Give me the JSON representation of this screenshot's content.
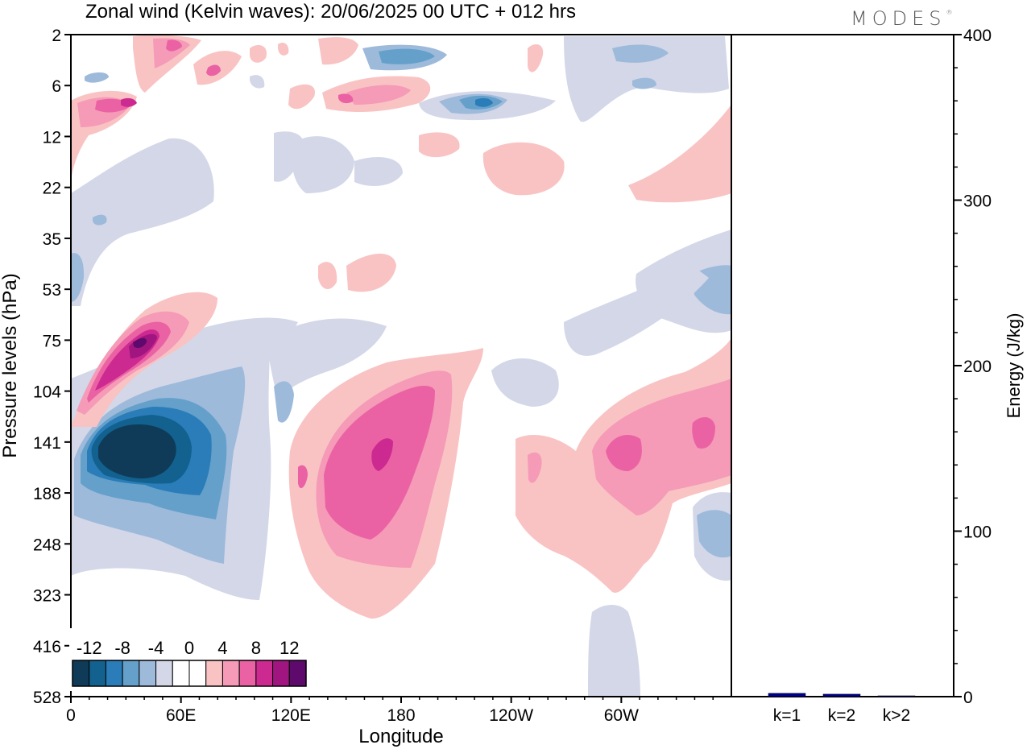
{
  "brand": {
    "name": "MODES",
    "mark": "®"
  },
  "chart_data": [
    {
      "type": "heatmap",
      "title": "Zonal wind (Kelvin waves):  20/06/2025  00 UTC  + 012 hrs",
      "xlabel": "Longitude",
      "ylabel": "Pressure levels (hPa)",
      "x_range_deg": [
        0,
        360
      ],
      "x_ticks": [
        {
          "lon": 0,
          "label": "0"
        },
        {
          "lon": 60,
          "label": "60E"
        },
        {
          "lon": 120,
          "label": "120E"
        },
        {
          "lon": 180,
          "label": "180"
        },
        {
          "lon": 240,
          "label": "120W"
        },
        {
          "lon": 300,
          "label": "60W"
        }
      ],
      "y_levels_hpa": [
        2,
        6,
        12,
        22,
        35,
        53,
        75,
        104,
        141,
        188,
        248,
        323,
        416,
        528
      ],
      "y_scale": "log-like (pressure levels, top = 2 hPa, bottom = 528 hPa)",
      "colorbar": {
        "labels": [
          "-12",
          "-8",
          "-4",
          "0",
          "4",
          "8",
          "12"
        ],
        "bins": [
          {
            "range": "< -12",
            "color": "#0f3b58"
          },
          {
            "range": "-12 to -10",
            "color": "#12618f"
          },
          {
            "range": "-10 to -8",
            "color": "#2a7db8"
          },
          {
            "range": "-8 to -6",
            "color": "#65a0cb"
          },
          {
            "range": "-6 to -4",
            "color": "#9dbadb"
          },
          {
            "range": "-4 to -2",
            "color": "#d3d7e8"
          },
          {
            "range": "-2 to 0",
            "color": "#ffffff"
          },
          {
            "range": "0 to 2",
            "color": "#ffffff"
          },
          {
            "range": "2 to 4",
            "color": "#f9c3c3"
          },
          {
            "range": "4 to 6",
            "color": "#f59ab7"
          },
          {
            "range": "6 to 8",
            "color": "#ea62a3"
          },
          {
            "range": "8 to 10",
            "color": "#cc2a91"
          },
          {
            "range": "10 to 12",
            "color": "#a0157f"
          },
          {
            "range": "> 12",
            "color": "#5e0a6c"
          }
        ]
      },
      "features": [
        {
          "name": "easterly-core",
          "lon": 30,
          "p_hpa": 141,
          "peak": -14
        },
        {
          "name": "westerly-upper-west",
          "lon": 28,
          "p_hpa": 80,
          "peak": 12
        },
        {
          "name": "westerly-central",
          "lon": 170,
          "p_hpa": 141,
          "peak": 10
        },
        {
          "name": "westerly-east",
          "lon": 305,
          "p_hpa": 141,
          "peak": 8
        },
        {
          "name": "easterly-stratosphere",
          "lon": 227,
          "p_hpa": 8,
          "peak": -8
        },
        {
          "name": "westerly-stratosphere-west",
          "lon": 30,
          "p_hpa": 8,
          "peak": 10
        }
      ]
    },
    {
      "type": "bar",
      "ylabel": "Energy (J/kg)",
      "ylim": [
        0,
        400
      ],
      "y_ticks": [
        "0",
        "100",
        "200",
        "300",
        "400"
      ],
      "categories": [
        "k=1",
        "k=2",
        "k>2"
      ],
      "values": [
        2,
        1.5,
        0.5
      ],
      "bar_color": "#00008b"
    }
  ]
}
